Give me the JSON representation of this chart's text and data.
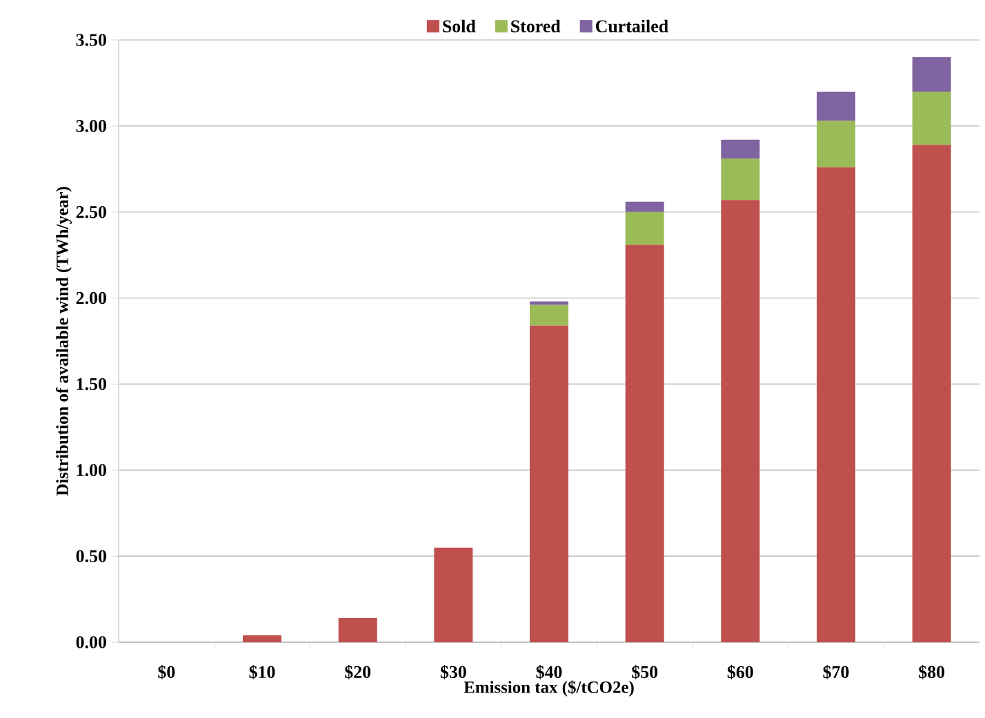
{
  "chart_data": {
    "type": "bar",
    "stacked": true,
    "xlabel": "Emission tax ($/tCO2e)",
    "ylabel": "Distribution of available wind (TWh/year)",
    "categories": [
      "$0",
      "$10",
      "$20",
      "$30",
      "$40",
      "$50",
      "$60",
      "$70",
      "$80"
    ],
    "series": [
      {
        "name": "Sold",
        "color": "#c0504d",
        "values": [
          0,
          0.04,
          0.14,
          0.55,
          1.84,
          2.31,
          2.57,
          2.76,
          2.89
        ]
      },
      {
        "name": "Stored",
        "color": "#9bbb59",
        "values": [
          0,
          0,
          0,
          0,
          0.12,
          0.19,
          0.24,
          0.27,
          0.31
        ]
      },
      {
        "name": "Curtailed",
        "color": "#8064a2",
        "values": [
          0,
          0,
          0,
          0,
          0.02,
          0.06,
          0.11,
          0.17,
          0.2
        ]
      }
    ],
    "ylim": [
      0,
      3.5
    ],
    "yticks": [
      {
        "value": 0,
        "label": "0.00"
      },
      {
        "value": 0.5,
        "label": "0.50"
      },
      {
        "value": 1,
        "label": "1.00"
      },
      {
        "value": 1.5,
        "label": "1.50"
      },
      {
        "value": 2,
        "label": "2.00"
      },
      {
        "value": 2.5,
        "label": "2.50"
      },
      {
        "value": 3,
        "label": "3.00"
      },
      {
        "value": 3.5,
        "label": "3.50"
      }
    ],
    "grid": "y",
    "legend": "top"
  }
}
